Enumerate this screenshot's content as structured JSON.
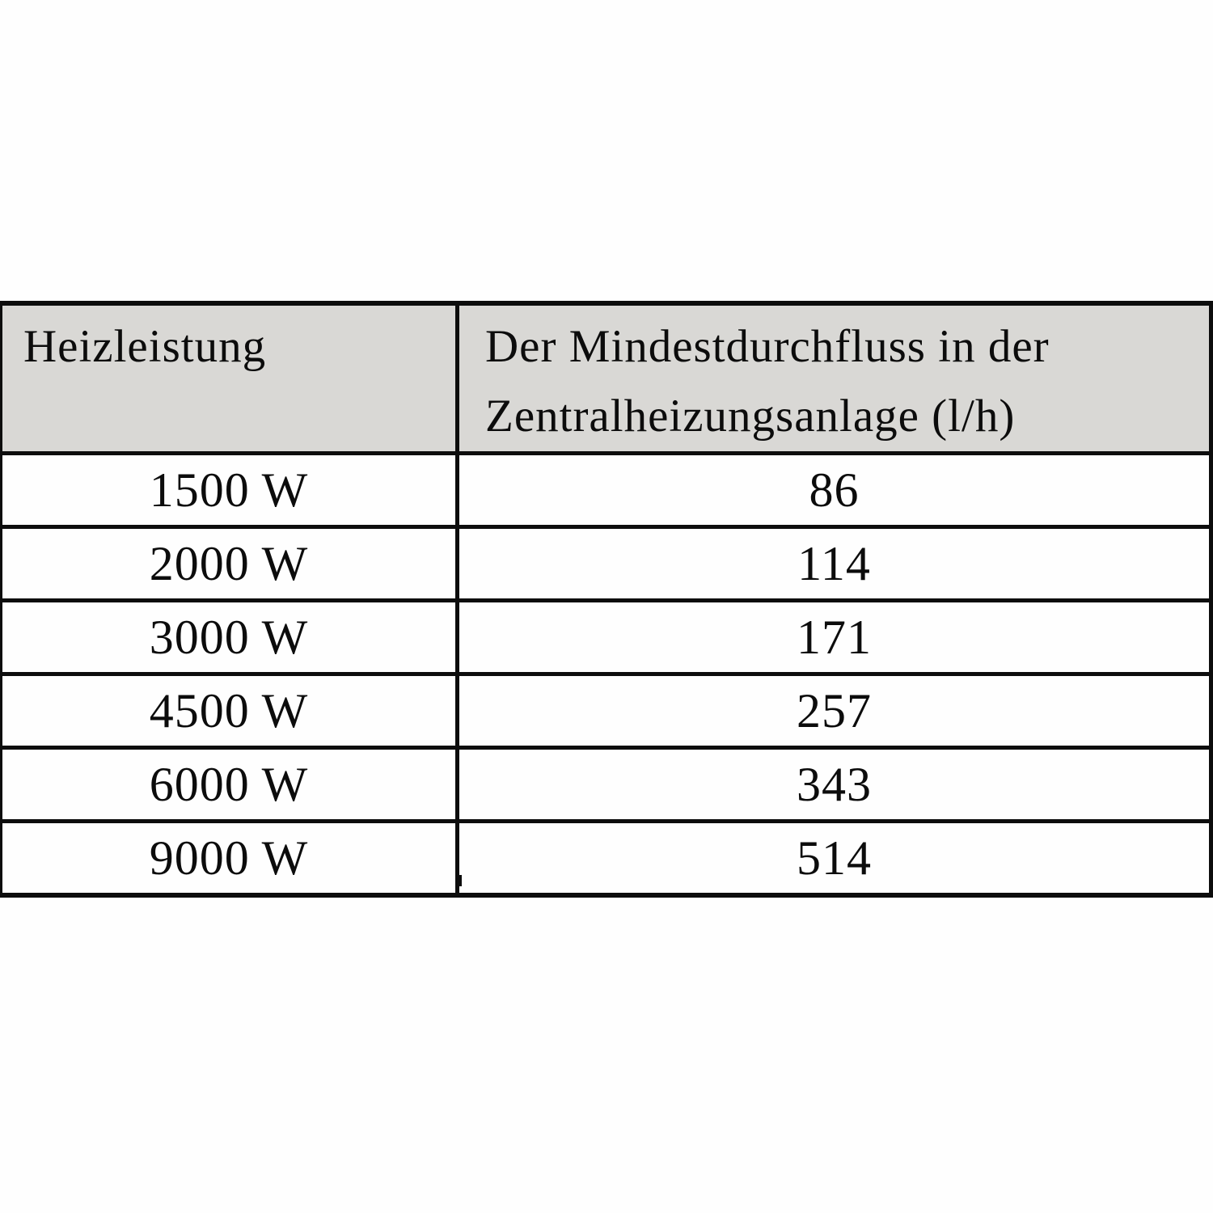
{
  "table": {
    "headers": [
      "Heizleistung",
      "Der Mindestdurchfluss in der Zentralheizungsanlage (l/h)"
    ],
    "rows": [
      {
        "power": "1500 W",
        "flow": "86"
      },
      {
        "power": "2000 W",
        "flow": "114"
      },
      {
        "power": "3000 W",
        "flow": "171"
      },
      {
        "power": "4500 W",
        "flow": "257"
      },
      {
        "power": "6000 W",
        "flow": "343"
      },
      {
        "power": "9000 W",
        "flow": "514"
      }
    ],
    "colors": {
      "header_background": "#d9d8d5",
      "border": "#0d0d0d",
      "page_background": "#ffffff",
      "text": "#0c0c0c"
    }
  }
}
